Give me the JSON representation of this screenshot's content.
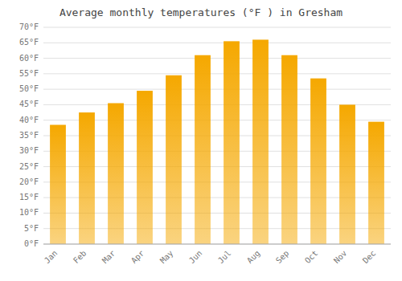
{
  "chart_data": {
    "type": "bar",
    "title": "Average monthly temperatures (°F ) in Gresham",
    "categories": [
      "Jan",
      "Feb",
      "Mar",
      "Apr",
      "May",
      "Jun",
      "Jul",
      "Aug",
      "Sep",
      "Oct",
      "Nov",
      "Dec"
    ],
    "values": [
      38.5,
      42.5,
      45.5,
      49.5,
      54.5,
      61.0,
      65.5,
      66.0,
      61.0,
      53.5,
      45.0,
      39.5
    ],
    "color": "#F5A800",
    "ylim": [
      0,
      70
    ],
    "yticks": [
      {
        "value": 0,
        "label": "0°F"
      },
      {
        "value": 5,
        "label": "5°F"
      },
      {
        "value": 10,
        "label": "10°F"
      },
      {
        "value": 15,
        "label": "15°F"
      },
      {
        "value": 20,
        "label": "20°F"
      },
      {
        "value": 25,
        "label": "25°F"
      },
      {
        "value": 30,
        "label": "30°F"
      },
      {
        "value": 35,
        "label": "35°F"
      },
      {
        "value": 40,
        "label": "40°F"
      },
      {
        "value": 45,
        "label": "45°F"
      },
      {
        "value": 50,
        "label": "50°F"
      },
      {
        "value": 55,
        "label": "55°F"
      },
      {
        "value": 60,
        "label": "60°F"
      },
      {
        "value": 65,
        "label": "65°F"
      },
      {
        "value": 70,
        "label": "70°F"
      }
    ],
    "grid": true
  }
}
